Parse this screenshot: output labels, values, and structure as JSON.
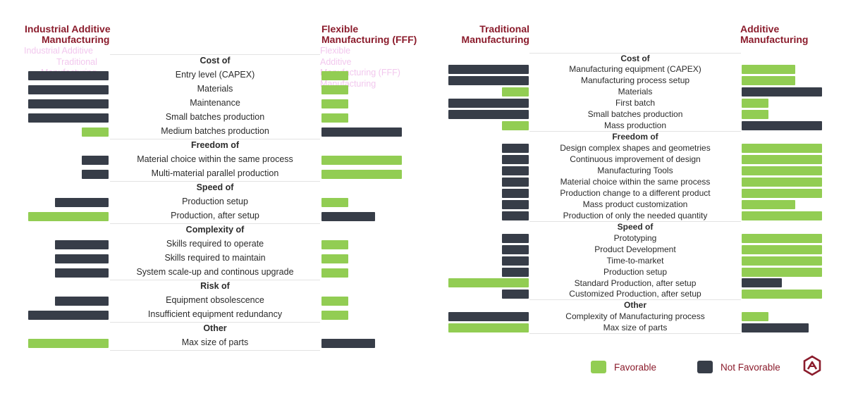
{
  "colors": {
    "favorable": "#92cd53",
    "not_favorable": "#373d48",
    "header": "#8b1c2c"
  },
  "left_panel": {
    "header_left": [
      "Industrial Additive",
      "Manufacturing"
    ],
    "header_right": [
      "Flexible",
      "Manufacturing (FFF)"
    ],
    "ghost_left": [
      "Industrial Additive",
      "Traditional",
      "Manufacturing"
    ],
    "ghost_right": [
      "Flexible",
      "Additive",
      "Manufacturing (FFF)",
      "Manufacturing"
    ]
  },
  "right_panel": {
    "header_left": [
      "Traditional",
      "Manufacturing"
    ],
    "header_right": [
      "Additive",
      "Manufacturing"
    ]
  },
  "chart_data": [
    {
      "type": "bar",
      "title": "",
      "series": [
        {
          "name": "Industrial Additive Manufacturing",
          "side": "left"
        },
        {
          "name": "Flexible Manufacturing (FFF)",
          "side": "right"
        }
      ],
      "scale_max": 3,
      "rows": [
        {
          "kind": "group",
          "label": "Cost of"
        },
        {
          "kind": "item",
          "label": "Entry level (CAPEX)",
          "left": {
            "value": 3,
            "favorable": false
          },
          "right": {
            "value": 1,
            "favorable": true
          }
        },
        {
          "kind": "item",
          "label": "Materials",
          "left": {
            "value": 3,
            "favorable": false
          },
          "right": {
            "value": 1,
            "favorable": true
          }
        },
        {
          "kind": "item",
          "label": "Maintenance",
          "left": {
            "value": 3,
            "favorable": false
          },
          "right": {
            "value": 1,
            "favorable": true
          }
        },
        {
          "kind": "item",
          "label": "Small batches production",
          "left": {
            "value": 3,
            "favorable": false
          },
          "right": {
            "value": 1,
            "favorable": true
          }
        },
        {
          "kind": "item",
          "label": "Medium batches production",
          "left": {
            "value": 1,
            "favorable": true
          },
          "right": {
            "value": 3,
            "favorable": false
          }
        },
        {
          "kind": "group",
          "label": "Freedom of"
        },
        {
          "kind": "item",
          "label": "Material choice within the same process",
          "left": {
            "value": 1,
            "favorable": false
          },
          "right": {
            "value": 3,
            "favorable": true
          }
        },
        {
          "kind": "item",
          "label": "Multi-material parallel production",
          "left": {
            "value": 1,
            "favorable": false
          },
          "right": {
            "value": 3,
            "favorable": true
          }
        },
        {
          "kind": "group",
          "label": "Speed of"
        },
        {
          "kind": "item",
          "label": "Production setup",
          "left": {
            "value": 2,
            "favorable": false
          },
          "right": {
            "value": 1,
            "favorable": true
          }
        },
        {
          "kind": "item",
          "label": "Production, after setup",
          "left": {
            "value": 3,
            "favorable": true
          },
          "right": {
            "value": 2,
            "favorable": false
          }
        },
        {
          "kind": "group",
          "label": "Complexity of"
        },
        {
          "kind": "item",
          "label": "Skills required to operate",
          "left": {
            "value": 2,
            "favorable": false
          },
          "right": {
            "value": 1,
            "favorable": true
          }
        },
        {
          "kind": "item",
          "label": "Skills required to maintain",
          "left": {
            "value": 2,
            "favorable": false
          },
          "right": {
            "value": 1,
            "favorable": true
          }
        },
        {
          "kind": "item",
          "label": "System scale-up and continous upgrade",
          "left": {
            "value": 2,
            "favorable": false
          },
          "right": {
            "value": 1,
            "favorable": true
          }
        },
        {
          "kind": "group",
          "label": "Risk of"
        },
        {
          "kind": "item",
          "label": "Equipment obsolescence",
          "left": {
            "value": 2,
            "favorable": false
          },
          "right": {
            "value": 1,
            "favorable": true
          }
        },
        {
          "kind": "item",
          "label": "Insufficient equipment redundancy",
          "left": {
            "value": 3,
            "favorable": false
          },
          "right": {
            "value": 1,
            "favorable": true
          }
        },
        {
          "kind": "group",
          "label": "Other"
        },
        {
          "kind": "item",
          "label": "Max size of parts",
          "left": {
            "value": 3,
            "favorable": true
          },
          "right": {
            "value": 2,
            "favorable": false
          }
        }
      ]
    },
    {
      "type": "bar",
      "title": "",
      "series": [
        {
          "name": "Traditional Manufacturing",
          "side": "left"
        },
        {
          "name": "Additive Manufacturing",
          "side": "right"
        }
      ],
      "scale_max": 3,
      "rows": [
        {
          "kind": "group",
          "label": "Cost of"
        },
        {
          "kind": "item",
          "label": "Manufacturing equipment (CAPEX)",
          "left": {
            "value": 3,
            "favorable": false
          },
          "right": {
            "value": 2,
            "favorable": true
          }
        },
        {
          "kind": "item",
          "label": "Manufacturing process setup",
          "left": {
            "value": 3,
            "favorable": false
          },
          "right": {
            "value": 2,
            "favorable": true
          }
        },
        {
          "kind": "item",
          "label": "Materials",
          "left": {
            "value": 1,
            "favorable": true
          },
          "right": {
            "value": 3,
            "favorable": false
          }
        },
        {
          "kind": "item",
          "label": "First batch",
          "left": {
            "value": 3,
            "favorable": false
          },
          "right": {
            "value": 1,
            "favorable": true
          }
        },
        {
          "kind": "item",
          "label": "Small batches production",
          "left": {
            "value": 3,
            "favorable": false
          },
          "right": {
            "value": 1,
            "favorable": true
          }
        },
        {
          "kind": "item",
          "label": "Mass production",
          "left": {
            "value": 1,
            "favorable": true
          },
          "right": {
            "value": 3,
            "favorable": false
          }
        },
        {
          "kind": "group",
          "label": "Freedom of"
        },
        {
          "kind": "item",
          "label": "Design complex shapes and geometries",
          "left": {
            "value": 1,
            "favorable": false
          },
          "right": {
            "value": 3,
            "favorable": true
          }
        },
        {
          "kind": "item",
          "label": "Continuous improvement of design",
          "left": {
            "value": 1,
            "favorable": false
          },
          "right": {
            "value": 3,
            "favorable": true
          }
        },
        {
          "kind": "item",
          "label": "Manufacturing Tools",
          "left": {
            "value": 1,
            "favorable": false
          },
          "right": {
            "value": 3,
            "favorable": true
          }
        },
        {
          "kind": "item",
          "label": "Material choice within the same process",
          "left": {
            "value": 1,
            "favorable": false
          },
          "right": {
            "value": 3,
            "favorable": true
          }
        },
        {
          "kind": "item",
          "label": "Production change to a different product",
          "left": {
            "value": 1,
            "favorable": false
          },
          "right": {
            "value": 3,
            "favorable": true
          }
        },
        {
          "kind": "item",
          "label": "Mass product customization",
          "left": {
            "value": 1,
            "favorable": false
          },
          "right": {
            "value": 2,
            "favorable": true
          }
        },
        {
          "kind": "item",
          "label": "Production of only the needed quantity",
          "left": {
            "value": 1,
            "favorable": false
          },
          "right": {
            "value": 3,
            "favorable": true
          }
        },
        {
          "kind": "group",
          "label": "Speed of"
        },
        {
          "kind": "item",
          "label": "Prototyping",
          "left": {
            "value": 1,
            "favorable": false
          },
          "right": {
            "value": 3,
            "favorable": true
          }
        },
        {
          "kind": "item",
          "label": "Product Development",
          "left": {
            "value": 1,
            "favorable": false
          },
          "right": {
            "value": 3,
            "favorable": true
          }
        },
        {
          "kind": "item",
          "label": "Time-to-market",
          "left": {
            "value": 1,
            "favorable": false
          },
          "right": {
            "value": 3,
            "favorable": true
          }
        },
        {
          "kind": "item",
          "label": "Production setup",
          "left": {
            "value": 1,
            "favorable": false
          },
          "right": {
            "value": 3,
            "favorable": true
          }
        },
        {
          "kind": "item",
          "label": "Standard Production, after setup",
          "left": {
            "value": 3,
            "favorable": true
          },
          "right": {
            "value": 1.5,
            "favorable": false
          }
        },
        {
          "kind": "item",
          "label": "Customized Production, after setup",
          "left": {
            "value": 1,
            "favorable": false
          },
          "right": {
            "value": 3,
            "favorable": true
          }
        },
        {
          "kind": "group",
          "label": "Other"
        },
        {
          "kind": "item",
          "label": "Complexity of Manufacturing process",
          "left": {
            "value": 3,
            "favorable": false
          },
          "right": {
            "value": 1,
            "favorable": true
          }
        },
        {
          "kind": "item",
          "label": "Max size of parts",
          "left": {
            "value": 3,
            "favorable": true
          },
          "right": {
            "value": 2.5,
            "favorable": false
          }
        }
      ]
    }
  ],
  "legend": {
    "favorable": "Favorable",
    "not_favorable": "Not Favorable"
  },
  "logo": {
    "icon": "company-logo-icon"
  }
}
